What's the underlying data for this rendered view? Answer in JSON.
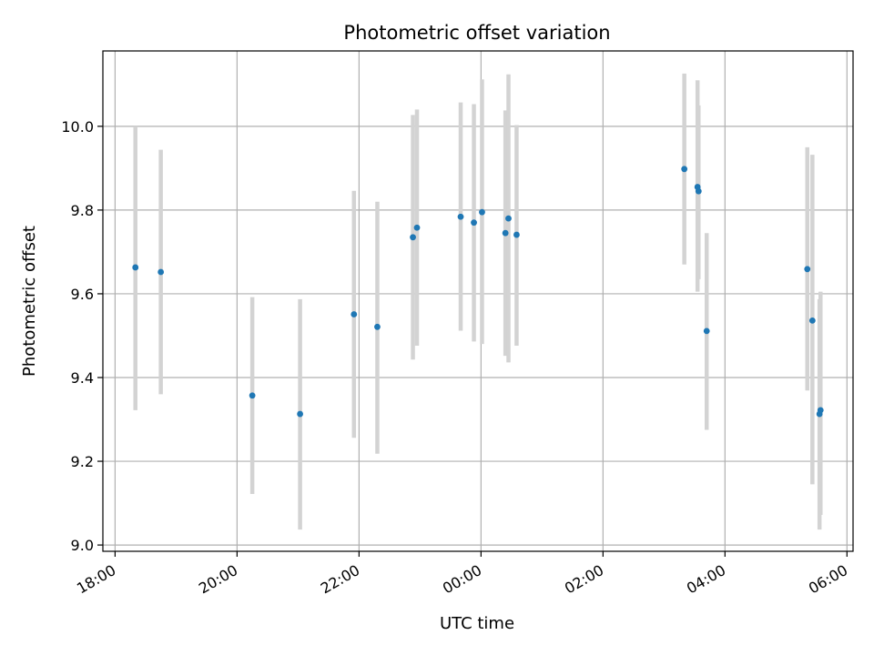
{
  "chart_data": {
    "type": "scatter",
    "title": "Photometric offset variation",
    "xlabel": "UTC time",
    "ylabel": "Photometric offset",
    "x_tick_labels": [
      "18:00",
      "20:00",
      "22:00",
      "00:00",
      "02:00",
      "04:00",
      "06:00"
    ],
    "x_ticks_hours": [
      18,
      20,
      22,
      24,
      26,
      28,
      30
    ],
    "x_range_hours": [
      17.8,
      30.1
    ],
    "y_ticks": [
      "9.0",
      "9.2",
      "9.4",
      "9.6",
      "9.8",
      "10.0"
    ],
    "ylim": [
      8.985,
      10.18
    ],
    "grid": true,
    "colors": {
      "point": "#1f77b4",
      "errorbar": "#d3d3d3",
      "grid": "#b0b0b0"
    },
    "points": [
      {
        "time": "18:20",
        "value": 9.663,
        "low": 9.322,
        "high": 10.0
      },
      {
        "time": "18:45",
        "value": 9.652,
        "low": 9.36,
        "high": 9.944
      },
      {
        "time": "20:15",
        "value": 9.357,
        "low": 9.122,
        "high": 9.592
      },
      {
        "time": "21:02",
        "value": 9.313,
        "low": 9.037,
        "high": 9.587
      },
      {
        "time": "21:55",
        "value": 9.551,
        "low": 9.256,
        "high": 9.846
      },
      {
        "time": "22:18",
        "value": 9.521,
        "low": 9.218,
        "high": 9.82
      },
      {
        "time": "22:53",
        "value": 9.735,
        "low": 9.443,
        "high": 10.027
      },
      {
        "time": "22:57",
        "value": 9.758,
        "low": 9.476,
        "high": 10.04
      },
      {
        "time": "23:40",
        "value": 9.784,
        "low": 9.512,
        "high": 10.057
      },
      {
        "time": "23:53",
        "value": 9.77,
        "low": 9.486,
        "high": 10.053
      },
      {
        "time": "24:01",
        "value": 9.795,
        "low": 9.48,
        "high": 10.112
      },
      {
        "time": "24:24",
        "value": 9.745,
        "low": 9.452,
        "high": 10.038
      },
      {
        "time": "24:27",
        "value": 9.78,
        "low": 9.436,
        "high": 10.124
      },
      {
        "time": "24:35",
        "value": 9.741,
        "low": 9.476,
        "high": 10.003
      },
      {
        "time": "27:20",
        "value": 9.898,
        "low": 9.67,
        "high": 10.126
      },
      {
        "time": "27:33",
        "value": 9.855,
        "low": 9.605,
        "high": 10.11
      },
      {
        "time": "27:34",
        "value": 9.845,
        "low": 9.635,
        "high": 10.05
      },
      {
        "time": "27:42",
        "value": 9.511,
        "low": 9.275,
        "high": 9.745
      },
      {
        "time": "29:21",
        "value": 9.659,
        "low": 9.369,
        "high": 9.95
      },
      {
        "time": "29:26",
        "value": 9.536,
        "low": 9.145,
        "high": 9.932
      },
      {
        "time": "29:33",
        "value": 9.313,
        "low": 9.037,
        "high": 9.587
      },
      {
        "time": "29:34",
        "value": 9.322,
        "low": 9.072,
        "high": 9.605
      }
    ]
  }
}
